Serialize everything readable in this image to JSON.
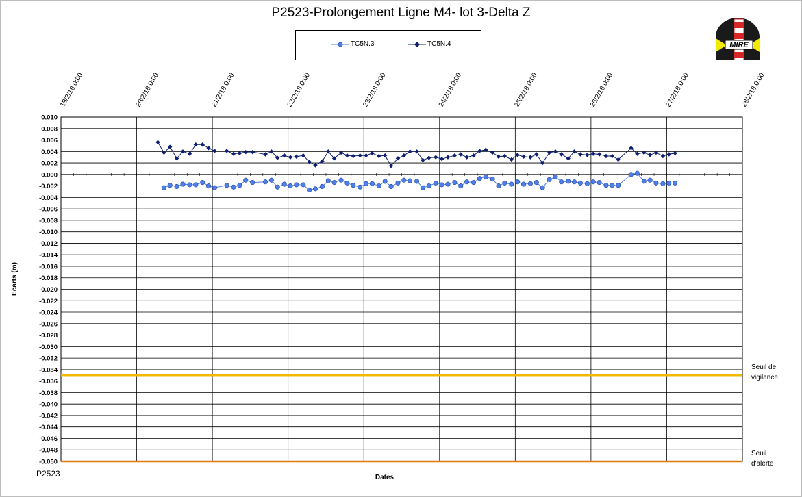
{
  "chart_data": {
    "type": "line",
    "title": "P2523-Prolongement  Ligne  M4- lot 3-Delta Z",
    "xlabel": "Dates",
    "ylabel": "Ecarts (m)",
    "source_label": "P2523",
    "ylim": [
      -0.05,
      0.01
    ],
    "y_ticks": [
      "0.010",
      "0.008",
      "0.006",
      "0.004",
      "0.002",
      "0.000",
      "-0.002",
      "-0.004",
      "-0.006",
      "-0.008",
      "-0.010",
      "-0.012",
      "-0.014",
      "-0.016",
      "-0.018",
      "-0.020",
      "-0.022",
      "-0.024",
      "-0.026",
      "-0.028",
      "-0.030",
      "-0.032",
      "-0.034",
      "-0.036",
      "-0.038",
      "-0.040",
      "-0.042",
      "-0.044",
      "-0.046",
      "-0.048",
      "-0.050"
    ],
    "x_ticks": [
      "19/2/18 0:00",
      "20/2/18 0:00",
      "21/2/18 0:00",
      "22/2/18 0:00",
      "23/2/18 0:00",
      "24/2/18 0:00",
      "25/2/18 0:00",
      "26/2/18 0:00",
      "27/2/18 0:00",
      "28/2/18 0:00"
    ],
    "xlim_days": [
      0,
      9
    ],
    "grid": true,
    "legend_position": "top-center",
    "series": [
      {
        "name": "TC5N.3",
        "color": "#4f7fe8",
        "marker": "circle",
        "x_days": [
          1.36,
          1.44,
          1.53,
          1.61,
          1.7,
          1.78,
          1.87,
          1.95,
          2.03,
          2.19,
          2.28,
          2.36,
          2.44,
          2.53,
          2.7,
          2.78,
          2.86,
          2.95,
          3.03,
          3.11,
          3.2,
          3.28,
          3.36,
          3.45,
          3.53,
          3.61,
          3.7,
          3.78,
          3.86,
          3.95,
          4.03,
          4.11,
          4.2,
          4.28,
          4.36,
          4.45,
          4.53,
          4.61,
          4.7,
          4.78,
          4.86,
          4.95,
          5.03,
          5.11,
          5.2,
          5.28,
          5.36,
          5.45,
          5.53,
          5.61,
          5.7,
          5.78,
          5.86,
          5.95,
          6.03,
          6.11,
          6.2,
          6.28,
          6.36,
          6.45,
          6.53,
          6.61,
          6.7,
          6.78,
          6.86,
          6.95,
          7.03,
          7.11,
          7.2,
          7.28,
          7.36,
          7.53,
          7.61,
          7.7,
          7.78,
          7.86,
          7.95,
          8.03,
          8.11
        ],
        "values": [
          -0.0023,
          -0.0019,
          -0.0021,
          -0.0017,
          -0.0018,
          -0.0018,
          -0.0014,
          -0.002,
          -0.0023,
          -0.0019,
          -0.0022,
          -0.0019,
          -0.001,
          -0.0014,
          -0.0013,
          -0.001,
          -0.0022,
          -0.0017,
          -0.002,
          -0.0018,
          -0.0018,
          -0.0027,
          -0.0025,
          -0.0021,
          -0.0011,
          -0.0014,
          -0.001,
          -0.0015,
          -0.0019,
          -0.0022,
          -0.0016,
          -0.0016,
          -0.002,
          -0.0012,
          -0.0021,
          -0.0015,
          -0.001,
          -0.0011,
          -0.0012,
          -0.0023,
          -0.002,
          -0.0015,
          -0.0018,
          -0.0017,
          -0.0014,
          -0.002,
          -0.0013,
          -0.0014,
          -0.0007,
          -0.0004,
          -0.0008,
          -0.002,
          -0.0015,
          -0.0017,
          -0.0013,
          -0.0017,
          -0.0016,
          -0.0014,
          -0.0023,
          -0.0009,
          -0.0004,
          -0.0013,
          -0.0012,
          -0.0013,
          -0.0015,
          -0.0016,
          -0.0013,
          -0.0014,
          -0.0019,
          -0.0019,
          -0.0019,
          0.0,
          0.0002,
          -0.0012,
          -0.001,
          -0.0015,
          -0.0016,
          -0.0015,
          -0.0015
        ]
      },
      {
        "name": "TC5N.4",
        "color": "#0d1f6e",
        "marker": "diamond",
        "x_days": [
          1.28,
          1.36,
          1.44,
          1.53,
          1.61,
          1.7,
          1.78,
          1.87,
          1.95,
          2.03,
          2.19,
          2.28,
          2.36,
          2.44,
          2.53,
          2.7,
          2.78,
          2.86,
          2.95,
          3.03,
          3.11,
          3.2,
          3.28,
          3.36,
          3.45,
          3.53,
          3.61,
          3.7,
          3.78,
          3.86,
          3.95,
          4.03,
          4.11,
          4.2,
          4.28,
          4.36,
          4.45,
          4.53,
          4.61,
          4.7,
          4.78,
          4.86,
          4.95,
          5.03,
          5.11,
          5.2,
          5.28,
          5.36,
          5.45,
          5.53,
          5.61,
          5.7,
          5.78,
          5.86,
          5.95,
          6.03,
          6.11,
          6.2,
          6.28,
          6.36,
          6.45,
          6.53,
          6.61,
          6.7,
          6.78,
          6.86,
          6.95,
          7.03,
          7.11,
          7.2,
          7.28,
          7.36,
          7.53,
          7.61,
          7.7,
          7.78,
          7.86,
          7.95,
          8.03,
          8.11
        ],
        "values": [
          0.0056,
          0.0038,
          0.0048,
          0.0028,
          0.004,
          0.0036,
          0.0052,
          0.0052,
          0.0046,
          0.0041,
          0.0041,
          0.0036,
          0.0037,
          0.0039,
          0.0039,
          0.0035,
          0.004,
          0.0029,
          0.0033,
          0.003,
          0.0031,
          0.0033,
          0.0022,
          0.0016,
          0.0023,
          0.004,
          0.0028,
          0.0038,
          0.0033,
          0.0032,
          0.0033,
          0.0033,
          0.0037,
          0.0032,
          0.0033,
          0.0015,
          0.0028,
          0.0033,
          0.004,
          0.004,
          0.0025,
          0.0029,
          0.003,
          0.0027,
          0.003,
          0.0033,
          0.0035,
          0.003,
          0.0033,
          0.0041,
          0.0043,
          0.0038,
          0.0031,
          0.0032,
          0.0026,
          0.0034,
          0.0031,
          0.003,
          0.0035,
          0.002,
          0.0038,
          0.004,
          0.0035,
          0.0028,
          0.004,
          0.0035,
          0.0034,
          0.0036,
          0.0035,
          0.0032,
          0.0032,
          0.0026,
          0.0046,
          0.0036,
          0.0038,
          0.0034,
          0.0038,
          0.0032,
          0.0035,
          0.0037
        ]
      }
    ],
    "thresholds": [
      {
        "label_line1": "Seuil de",
        "label_line2": "vigilance",
        "value": -0.035,
        "color": "#f5b800"
      },
      {
        "label_line1": "Seuil",
        "label_line2": "d'alerte",
        "value": -0.05,
        "color": "#e07a10"
      }
    ]
  },
  "logo": {
    "text": "MIRE",
    "colors": [
      "#1a1a1a",
      "#d92525",
      "#f2ea00"
    ]
  }
}
